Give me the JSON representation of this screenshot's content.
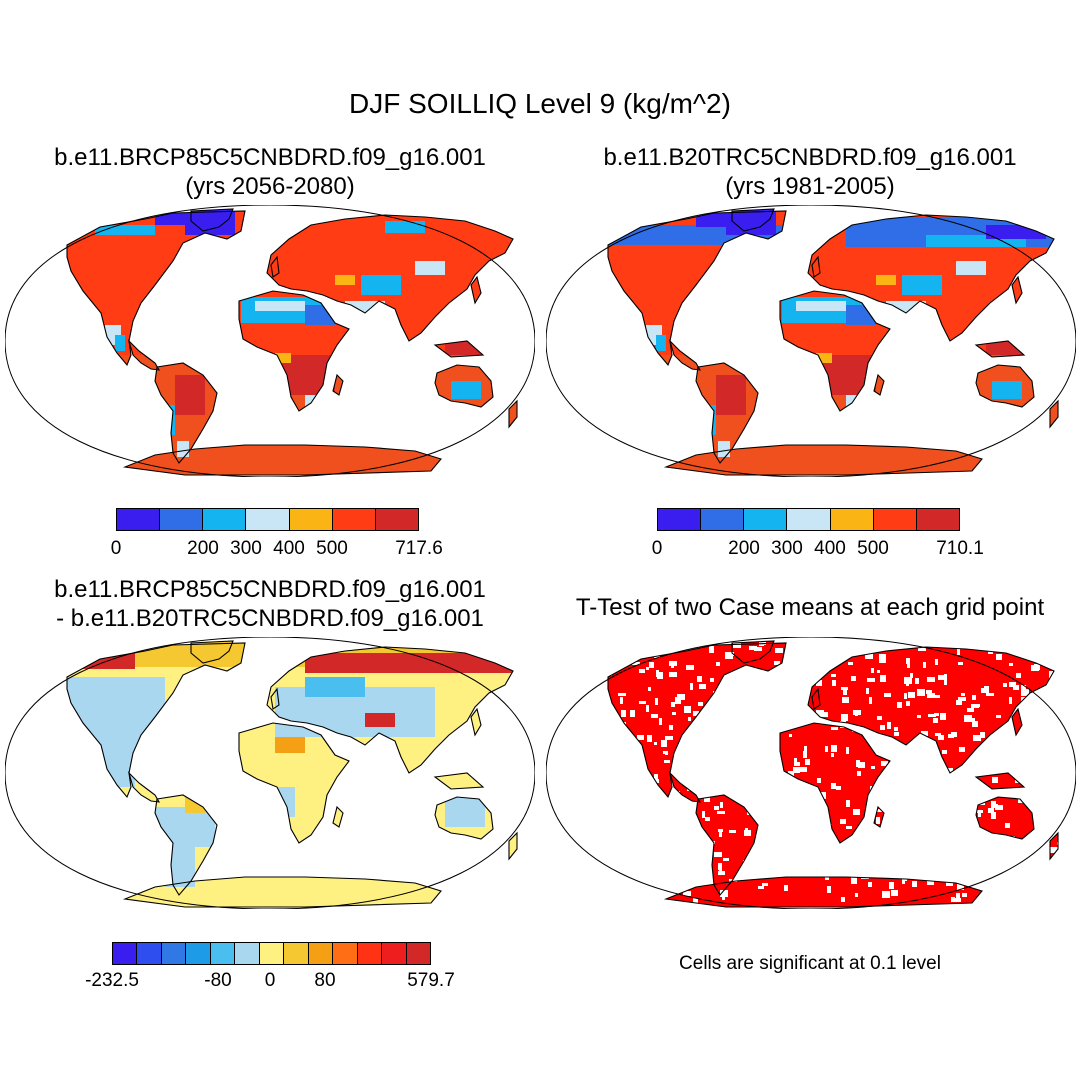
{
  "title": "DJF SOILLIQ Level 9 (kg/m^2)",
  "panels": {
    "top_left": {
      "line1": "b.e11.BRCP85C5CNBDRD.f09_g16.001",
      "line2": "(yrs 2056-2080)",
      "colorbar": {
        "colors": [
          "#3a1ef0",
          "#2f6ee6",
          "#14b4f0",
          "#c8e6f5",
          "#fab414",
          "#ff3c14",
          "#d22828"
        ],
        "ticks": [
          "0",
          "200",
          "300",
          "400",
          "500",
          "717.6"
        ]
      }
    },
    "top_right": {
      "line1": "b.e11.B20TRC5CNBDRD.f09_g16.001",
      "line2": "(yrs 1981-2005)",
      "colorbar": {
        "colors": [
          "#3a1ef0",
          "#2f6ee6",
          "#14b4f0",
          "#c8e6f5",
          "#fab414",
          "#ff3c14",
          "#d22828"
        ],
        "ticks": [
          "0",
          "200",
          "300",
          "400",
          "500",
          "710.1"
        ]
      }
    },
    "bottom_left": {
      "line1": "b.e11.BRCP85C5CNBDRD.f09_g16.001",
      "line2": "- b.e11.B20TRC5CNBDRD.f09_g16.001",
      "colorbar": {
        "colors": [
          "#3a1ef0",
          "#2f4ef0",
          "#2f78e6",
          "#1e9be6",
          "#4bbef0",
          "#aad7f0",
          "#fff082",
          "#f5c832",
          "#f5a014",
          "#ff6e14",
          "#ff3214",
          "#ee1e1e",
          "#d22828"
        ],
        "ticks": [
          "-232.5",
          "-80",
          "0",
          "80",
          "579.7"
        ]
      }
    },
    "bottom_right": {
      "title": "T-Test of two Case means at each grid point",
      "note": "Cells are significant at 0.1 level"
    }
  },
  "palette": {
    "land_outline": "#000000",
    "significant": "#ff0000"
  }
}
